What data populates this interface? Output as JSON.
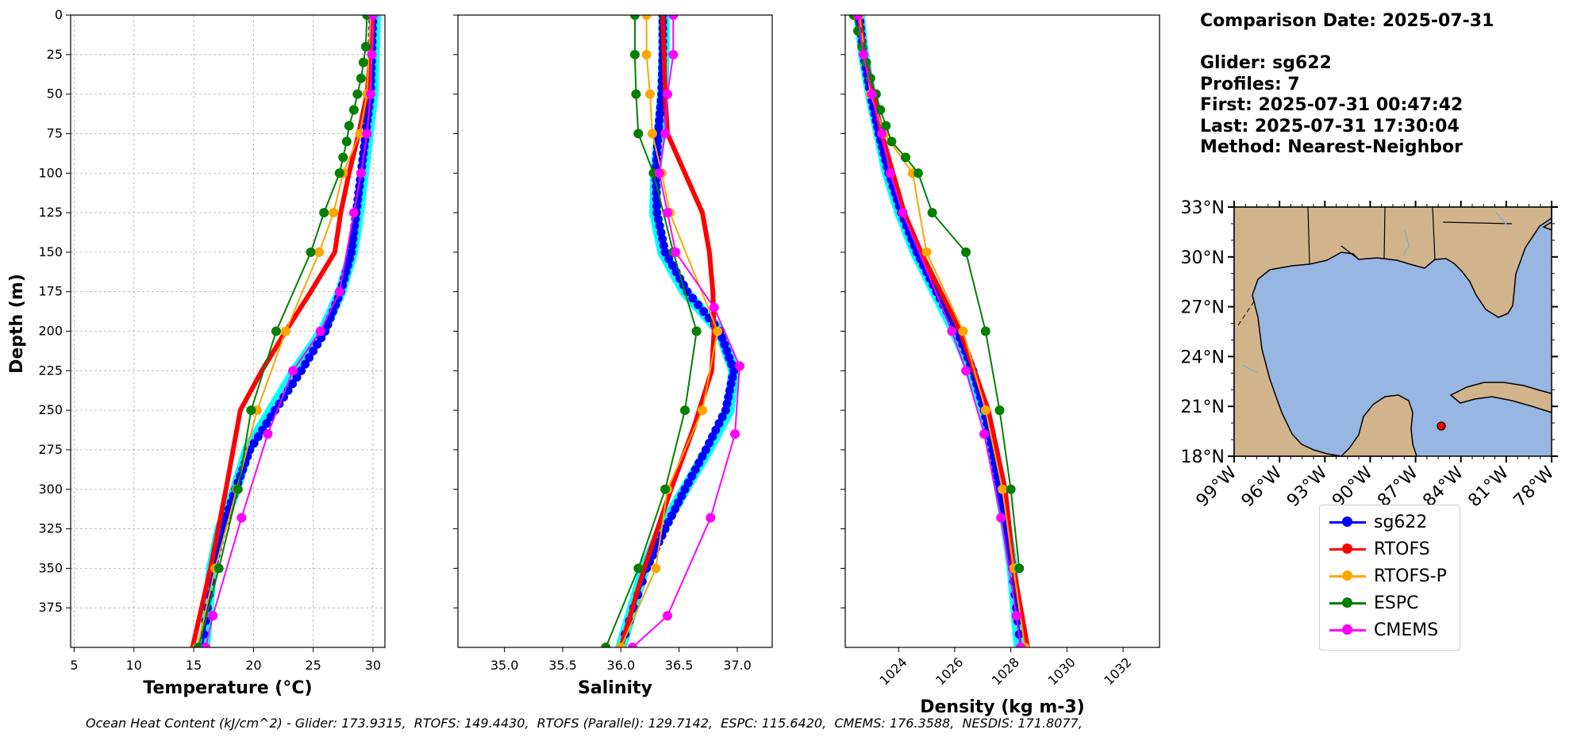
{
  "info": {
    "comparison": "Comparison Date: 2025-07-31",
    "glider": "Glider: sg622",
    "profiles": "Profiles: 7",
    "first": "First: 2025-07-31 00:47:42",
    "last": "Last: 2025-07-31 17:30:04",
    "method": "Method: Nearest-Neighbor"
  },
  "footer": "Ocean Heat Content (kJ/cm^2) - Glider: 173.9315,  RTOFS: 149.4430,  RTOFS (Parallel): 129.7142,  ESPC: 115.6420,  CMEMS: 176.3588,  NESDIS: 171.8077,",
  "colors": {
    "sg622": "#0000ff",
    "sg622_band": "#00ffff",
    "RTOFS": "#ff0000",
    "RTOFS-P": "#ffa500",
    "ESPC": "#008000",
    "CMEMS": "#ff00ff",
    "ocean": "#97b6e1",
    "land": "#d2b48c"
  },
  "legend": [
    {
      "key": "sg622",
      "label": "sg622"
    },
    {
      "key": "RTOFS",
      "label": "RTOFS"
    },
    {
      "key": "RTOFS-P",
      "label": "RTOFS-P"
    },
    {
      "key": "ESPC",
      "label": "ESPC"
    },
    {
      "key": "CMEMS",
      "label": "CMEMS"
    }
  ],
  "chart_data": [
    {
      "type": "line",
      "xlabel": "Temperature (°C)",
      "ylabel": "Depth (m)",
      "xlim": [
        4.7,
        31.0
      ],
      "ylim": [
        400,
        0
      ],
      "xticks": [
        5,
        10,
        15,
        20,
        25,
        30
      ],
      "yticks": [
        0,
        25,
        50,
        75,
        100,
        125,
        150,
        175,
        200,
        225,
        250,
        275,
        300,
        325,
        350,
        375
      ],
      "grid": true,
      "series": [
        {
          "name": "sg622",
          "style": "band",
          "x": [
            30.2,
            30.1,
            30.0,
            29.6,
            29.2,
            28.8,
            28.3,
            27.3,
            25.8,
            23.5,
            21.5,
            19.5,
            18.5,
            17.2,
            16.5,
            15.9
          ],
          "y": [
            0,
            25,
            50,
            75,
            100,
            125,
            150,
            175,
            200,
            225,
            250,
            275,
            300,
            325,
            350,
            400
          ]
        },
        {
          "name": "sg622",
          "style": "dots",
          "x": [
            30.0,
            29.9,
            29.8,
            29.4,
            29.0,
            28.6,
            28.2,
            27.3,
            26.0,
            24.0,
            21.8,
            19.7,
            18.5,
            17.4,
            16.6,
            15.7
          ],
          "y": [
            0,
            25,
            50,
            75,
            100,
            125,
            150,
            175,
            200,
            225,
            250,
            275,
            300,
            325,
            350,
            400
          ]
        },
        {
          "name": "RTOFS",
          "style": "thick",
          "x": [
            30.0,
            29.8,
            29.5,
            28.8,
            28.0,
            27.3,
            26.8,
            24.8,
            22.7,
            20.7,
            18.9,
            17.7,
            16.4,
            14.9
          ],
          "y": [
            0,
            25,
            50,
            75,
            100,
            125,
            150,
            175,
            200,
            225,
            250,
            300,
            350,
            400
          ]
        },
        {
          "name": "RTOFS-P",
          "style": "markers",
          "x": [
            29.8,
            29.5,
            28.9,
            27.5,
            26.7,
            25.5,
            22.7,
            20.3,
            18.6,
            16.8,
            15.3
          ],
          "y": [
            0,
            50,
            75,
            100,
            125,
            150,
            200,
            250,
            300,
            350,
            400
          ]
        },
        {
          "name": "ESPC",
          "style": "markers",
          "x": [
            29.5,
            29.4,
            29.2,
            29.0,
            28.7,
            28.4,
            28.0,
            27.8,
            27.5,
            27.2,
            25.9,
            24.8,
            21.9,
            19.8,
            18.7,
            17.1,
            15.4
          ],
          "y": [
            0,
            20,
            30,
            40,
            50,
            60,
            70,
            80,
            90,
            100,
            125,
            150,
            200,
            250,
            300,
            350,
            400
          ]
        },
        {
          "name": "CMEMS",
          "style": "markers",
          "x": [
            30.0,
            29.9,
            29.8,
            29.5,
            29.0,
            28.4,
            27.2,
            25.6,
            23.3,
            21.2,
            19.0,
            16.6,
            16.0
          ],
          "y": [
            0,
            25,
            50,
            75,
            100,
            125,
            175,
            200,
            225,
            265,
            318,
            380,
            400
          ]
        }
      ]
    },
    {
      "type": "line",
      "xlabel": "Salinity",
      "xlim": [
        34.6,
        37.3
      ],
      "ylim": [
        400,
        0
      ],
      "xticks": [
        35.0,
        35.5,
        36.0,
        36.5,
        37.0
      ],
      "grid": false,
      "series": [
        {
          "name": "sg622",
          "style": "band",
          "x": [
            36.37,
            36.37,
            36.36,
            36.33,
            36.3,
            36.29,
            36.36,
            36.55,
            36.85,
            36.97,
            36.93,
            36.75,
            36.55,
            36.35,
            36.2,
            36.0
          ],
          "y": [
            0,
            25,
            50,
            75,
            100,
            125,
            150,
            175,
            200,
            225,
            250,
            275,
            300,
            325,
            350,
            400
          ]
        },
        {
          "name": "sg622",
          "style": "dots",
          "x": [
            36.36,
            36.36,
            36.35,
            36.32,
            36.3,
            36.31,
            36.38,
            36.57,
            36.85,
            36.97,
            36.9,
            36.73,
            36.55,
            36.38,
            36.22,
            36.0
          ],
          "y": [
            0,
            25,
            50,
            75,
            100,
            125,
            150,
            175,
            200,
            225,
            250,
            275,
            300,
            325,
            350,
            400
          ]
        },
        {
          "name": "RTOFS",
          "style": "thick",
          "x": [
            36.36,
            36.37,
            36.38,
            36.4,
            36.55,
            36.7,
            36.76,
            36.79,
            36.8,
            36.78,
            36.63,
            36.43,
            36.2,
            36.0
          ],
          "y": [
            0,
            25,
            50,
            75,
            100,
            125,
            150,
            175,
            200,
            225,
            260,
            300,
            350,
            400
          ]
        },
        {
          "name": "RTOFS-P",
          "style": "markers",
          "x": [
            36.22,
            36.22,
            36.25,
            36.27,
            36.35,
            36.42,
            36.83,
            36.7,
            36.4,
            36.3,
            36.0
          ],
          "y": [
            0,
            25,
            50,
            75,
            100,
            125,
            200,
            250,
            300,
            350,
            400
          ]
        },
        {
          "name": "ESPC",
          "style": "markers",
          "x": [
            36.12,
            36.12,
            36.13,
            36.15,
            36.28,
            36.45,
            36.65,
            36.55,
            36.38,
            36.15,
            35.87
          ],
          "y": [
            0,
            25,
            50,
            75,
            100,
            150,
            200,
            250,
            300,
            350,
            400
          ]
        },
        {
          "name": "CMEMS",
          "style": "markers",
          "x": [
            36.45,
            36.45,
            36.4,
            36.38,
            36.33,
            36.4,
            36.47,
            36.8,
            37.02,
            36.98,
            36.77,
            36.4,
            36.1
          ],
          "y": [
            0,
            25,
            50,
            75,
            100,
            125,
            150,
            185,
            222,
            265,
            318,
            380,
            400
          ]
        }
      ]
    },
    {
      "type": "line",
      "xlabel": "Density (kg m-3)",
      "xlim": [
        1022.1,
        1033.3
      ],
      "ylim": [
        400,
        0
      ],
      "xticks": [
        1024,
        1026,
        1028,
        1030,
        1032
      ],
      "grid": false,
      "series": [
        {
          "name": "sg622",
          "style": "band",
          "x": [
            1022.6,
            1022.75,
            1023.0,
            1023.3,
            1023.6,
            1024.05,
            1024.6,
            1025.3,
            1026.0,
            1026.6,
            1027.05,
            1027.35,
            1027.6,
            1027.85,
            1028.05,
            1028.3
          ],
          "y": [
            0,
            25,
            50,
            75,
            100,
            125,
            150,
            175,
            200,
            225,
            250,
            275,
            300,
            325,
            350,
            400
          ]
        },
        {
          "name": "sg622",
          "style": "dots",
          "x": [
            1022.6,
            1022.75,
            1023.0,
            1023.3,
            1023.65,
            1024.1,
            1024.65,
            1025.35,
            1026.1,
            1026.65,
            1027.05,
            1027.35,
            1027.6,
            1027.85,
            1028.05,
            1028.35
          ],
          "y": [
            0,
            25,
            50,
            75,
            100,
            125,
            150,
            175,
            200,
            225,
            250,
            275,
            300,
            325,
            350,
            400
          ]
        },
        {
          "name": "RTOFS",
          "style": "thick",
          "x": [
            1022.6,
            1022.8,
            1023.1,
            1023.4,
            1023.8,
            1024.2,
            1024.8,
            1025.5,
            1026.2,
            1026.7,
            1027.2,
            1027.5,
            1027.8,
            1028.1,
            1028.6
          ],
          "y": [
            0,
            25,
            50,
            75,
            100,
            125,
            150,
            175,
            200,
            225,
            250,
            275,
            300,
            350,
            400
          ]
        },
        {
          "name": "RTOFS-P",
          "style": "markers",
          "x": [
            1022.6,
            1023.0,
            1023.5,
            1024.5,
            1025.0,
            1026.3,
            1027.1,
            1027.7,
            1028.1,
            1028.5
          ],
          "y": [
            0,
            50,
            75,
            100,
            150,
            200,
            250,
            300,
            350,
            400
          ]
        },
        {
          "name": "ESPC",
          "style": "markers",
          "x": [
            1022.4,
            1022.55,
            1022.7,
            1022.85,
            1023.0,
            1023.2,
            1023.35,
            1023.55,
            1023.75,
            1024.25,
            1024.7,
            1025.2,
            1026.4,
            1027.1,
            1027.6,
            1028.0,
            1028.3
          ],
          "y": [
            0,
            10,
            20,
            30,
            40,
            50,
            60,
            70,
            80,
            90,
            100,
            125,
            150,
            200,
            250,
            300,
            350
          ]
        },
        {
          "name": "CMEMS",
          "style": "markers",
          "x": [
            1022.55,
            1022.75,
            1023.05,
            1023.4,
            1023.7,
            1024.15,
            1025.9,
            1026.4,
            1027.05,
            1027.65,
            1028.2,
            1028.35
          ],
          "y": [
            0,
            25,
            50,
            75,
            100,
            125,
            200,
            225,
            265,
            318,
            380,
            400
          ]
        }
      ]
    }
  ],
  "map": {
    "lon_ticks": [
      "99°W",
      "96°W",
      "93°W",
      "90°W",
      "87°W",
      "84°W",
      "81°W",
      "78°W"
    ],
    "lat_ticks": [
      "33°N",
      "30°N",
      "27°N",
      "24°N",
      "21°N",
      "18°N"
    ],
    "glider_position": {
      "lon": -85.7,
      "lat": 19.9
    }
  }
}
